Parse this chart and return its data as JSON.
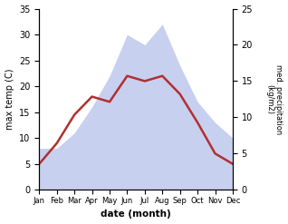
{
  "months": [
    "Jan",
    "Feb",
    "Mar",
    "Apr",
    "May",
    "Jun",
    "Jul",
    "Aug",
    "Sep",
    "Oct",
    "Nov",
    "Dec"
  ],
  "temp": [
    5.0,
    9.0,
    14.5,
    18.0,
    17.0,
    22.0,
    21.0,
    22.0,
    18.5,
    13.0,
    7.0,
    5.0
  ],
  "precip_left": [
    8.0,
    8.0,
    11.0,
    16.0,
    22.0,
    30.0,
    28.0,
    32.0,
    24.0,
    17.0,
    13.0,
    10.0
  ],
  "temp_color": "#b03030",
  "precip_fill_color": "#c8d0f0",
  "ylabel_left": "max temp (C)",
  "ylabel_right": "med. precipitation\n(kg/m2)",
  "xlabel": "date (month)",
  "ylim_left": [
    0,
    35
  ],
  "ylim_right": [
    0,
    25
  ],
  "bg_color": "#ffffff"
}
